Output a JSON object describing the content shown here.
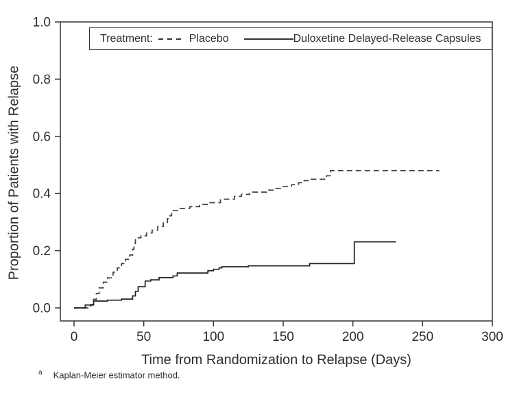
{
  "chart_data": {
    "type": "line",
    "subtype": "kaplan-meier-step",
    "title": "",
    "xlabel": "Time from Randomization to Relapse (Days)",
    "ylabel": "Proportion of Patients with Relapse",
    "xlim": [
      0,
      300
    ],
    "ylim": [
      0.0,
      1.0
    ],
    "x_ticks": [
      0,
      50,
      100,
      150,
      200,
      250,
      300
    ],
    "y_ticks": [
      0.0,
      0.2,
      0.4,
      0.6,
      0.8,
      1.0
    ],
    "grid": false,
    "legend_position": "top-inside",
    "axis_color": "#333338",
    "series": [
      {
        "name": "Placebo",
        "line_style": "dashed",
        "color": "#3f3f44",
        "points": [
          [
            0,
            0.0
          ],
          [
            12,
            0.012
          ],
          [
            14,
            0.03
          ],
          [
            16,
            0.05
          ],
          [
            18,
            0.07
          ],
          [
            21,
            0.09
          ],
          [
            24,
            0.105
          ],
          [
            28,
            0.125
          ],
          [
            31,
            0.14
          ],
          [
            34,
            0.155
          ],
          [
            37,
            0.17
          ],
          [
            40,
            0.185
          ],
          [
            42,
            0.205
          ],
          [
            43,
            0.225
          ],
          [
            44,
            0.245
          ],
          [
            48,
            0.252
          ],
          [
            52,
            0.262
          ],
          [
            56,
            0.272
          ],
          [
            60,
            0.285
          ],
          [
            64,
            0.297
          ],
          [
            67,
            0.312
          ],
          [
            68,
            0.322
          ],
          [
            70,
            0.341
          ],
          [
            75,
            0.348
          ],
          [
            83,
            0.354
          ],
          [
            90,
            0.362
          ],
          [
            96,
            0.368
          ],
          [
            105,
            0.38
          ],
          [
            115,
            0.39
          ],
          [
            120,
            0.397
          ],
          [
            126,
            0.405
          ],
          [
            138,
            0.412
          ],
          [
            144,
            0.418
          ],
          [
            150,
            0.424
          ],
          [
            156,
            0.431
          ],
          [
            161,
            0.438
          ],
          [
            165,
            0.445
          ],
          [
            170,
            0.45
          ],
          [
            181,
            0.462
          ],
          [
            184,
            0.48
          ],
          [
            262,
            0.48
          ]
        ]
      },
      {
        "name": "Duloxetine Delayed-Release Capsules",
        "line_style": "solid",
        "color": "#1f1f24",
        "points": [
          [
            0,
            0.0
          ],
          [
            8,
            0.01
          ],
          [
            14,
            0.024
          ],
          [
            24,
            0.027
          ],
          [
            34,
            0.031
          ],
          [
            42,
            0.042
          ],
          [
            44,
            0.058
          ],
          [
            46,
            0.074
          ],
          [
            51,
            0.094
          ],
          [
            55,
            0.098
          ],
          [
            61,
            0.106
          ],
          [
            71,
            0.112
          ],
          [
            74,
            0.122
          ],
          [
            96,
            0.13
          ],
          [
            100,
            0.135
          ],
          [
            104,
            0.14
          ],
          [
            106,
            0.144
          ],
          [
            125,
            0.147
          ],
          [
            169,
            0.155
          ],
          [
            201,
            0.231
          ],
          [
            231,
            0.231
          ]
        ]
      }
    ]
  },
  "legend": {
    "title": "Treatment:",
    "series1": "Placebo",
    "series2": "Duloxetine Delayed-Release Capsules"
  },
  "footnote": {
    "marker": "a",
    "text": "Kaplan-Meier estimator method."
  }
}
